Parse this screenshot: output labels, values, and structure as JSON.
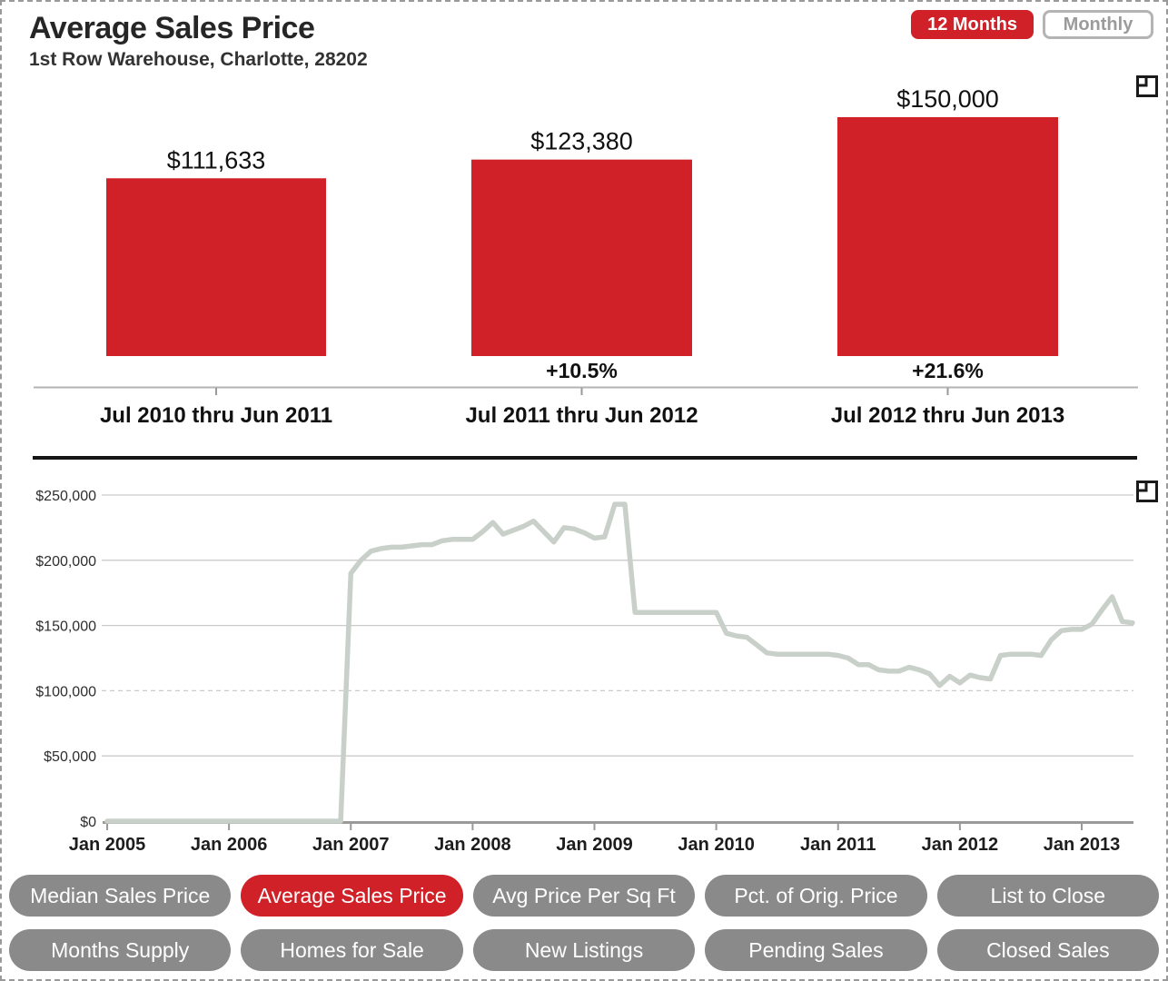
{
  "header": {
    "title": "Average Sales Price",
    "subtitle": "1st Row Warehouse, Charlotte, 28202"
  },
  "toggle": {
    "twelve_months": "12 Months",
    "monthly": "Monthly",
    "selected": "12 Months"
  },
  "colors": {
    "accent_red": "#cf2127",
    "nav_gray": "#8a8a8a",
    "line_gray": "#c8d0c9",
    "grid_gray": "#cbcbcb",
    "axis_gray": "#9a9a9a",
    "text_dark": "#1d1d1d"
  },
  "icons": [
    {
      "name": "bar-chart-corner-flag-icon"
    },
    {
      "name": "line-chart-corner-flag-icon"
    }
  ],
  "chart_data": [
    {
      "type": "bar",
      "title": "Average Sales Price, trailing 12-month periods",
      "categories": [
        "Jul 2010 thru Jun 2011",
        "Jul 2011 thru Jun 2012",
        "Jul 2012 thru Jun 2013"
      ],
      "values": [
        111633,
        123380,
        150000
      ],
      "value_labels": [
        "$111,633",
        "$123,380",
        "$150,000"
      ],
      "change_labels": [
        "",
        "+10.5%",
        "+21.6%"
      ],
      "ylim": [
        0,
        150000
      ],
      "bar_color": "#cf2127",
      "grid": false,
      "legend": "none"
    },
    {
      "type": "line",
      "title": "Average Sales Price, monthly",
      "x_tick_labels": [
        "Jan 2005",
        "Jan 2006",
        "Jan 2007",
        "Jan 2008",
        "Jan 2009",
        "Jan 2010",
        "Jan 2011",
        "Jan 2012",
        "Jan 2013"
      ],
      "y_tick_labels": [
        "$0",
        "$50,000",
        "$100,000",
        "$150,000",
        "$200,000",
        "$250,000"
      ],
      "ylim": [
        0,
        250000
      ],
      "x_start_month": "Jan 2005",
      "x_end_month": "Jun 2013",
      "grid": true,
      "dashed_gridline_value": 100000,
      "legend": "none",
      "series": [
        {
          "name": "Average Sales Price",
          "values_monthly": [
            0,
            0,
            0,
            0,
            0,
            0,
            0,
            0,
            0,
            0,
            0,
            0,
            0,
            0,
            0,
            0,
            0,
            0,
            0,
            0,
            0,
            0,
            0,
            0,
            190000,
            200000,
            207000,
            209000,
            210000,
            210000,
            211000,
            212000,
            212000,
            215000,
            216000,
            216000,
            216000,
            222000,
            229000,
            220000,
            223000,
            226000,
            230000,
            222000,
            214000,
            225000,
            224000,
            221000,
            217000,
            218000,
            243000,
            243000,
            160000,
            160000,
            160000,
            160000,
            160000,
            160000,
            160000,
            160000,
            160000,
            144000,
            142000,
            141000,
            135000,
            129000,
            128000,
            128000,
            128000,
            128000,
            128000,
            128000,
            127000,
            125000,
            120000,
            120000,
            116000,
            115000,
            115000,
            118000,
            116000,
            113000,
            104000,
            111000,
            106000,
            112000,
            110000,
            109000,
            127000,
            128000,
            128000,
            128000,
            127000,
            139000,
            146000,
            147000,
            147000,
            151000,
            162000,
            172000,
            153000,
            152000
          ]
        }
      ]
    }
  ],
  "nav": {
    "rows": [
      [
        {
          "label": "Median Sales Price",
          "active": false
        },
        {
          "label": "Average Sales Price",
          "active": true
        },
        {
          "label": "Avg Price Per Sq Ft",
          "active": false
        },
        {
          "label": "Pct. of Orig. Price",
          "active": false
        },
        {
          "label": "List to Close",
          "active": false
        }
      ],
      [
        {
          "label": "Months Supply",
          "active": false
        },
        {
          "label": "Homes for Sale",
          "active": false
        },
        {
          "label": "New Listings",
          "active": false
        },
        {
          "label": "Pending Sales",
          "active": false
        },
        {
          "label": "Closed Sales",
          "active": false
        }
      ]
    ]
  }
}
